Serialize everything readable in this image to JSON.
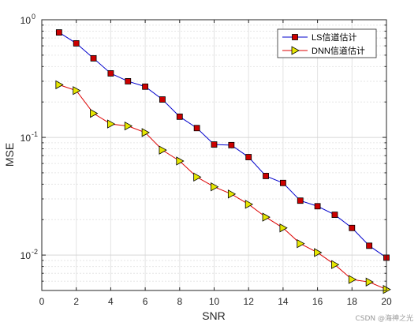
{
  "chart_data": {
    "type": "line",
    "xlabel": "SNR",
    "ylabel": "MSE",
    "xlim": [
      0,
      20
    ],
    "ylim": [
      0.005,
      1
    ],
    "yscale": "log",
    "grid": true,
    "legend_position": "top-right",
    "xticks": [
      "0",
      "2",
      "4",
      "6",
      "8",
      "10",
      "12",
      "14",
      "16",
      "18",
      "20"
    ],
    "yticks": [
      {
        "value": 1,
        "mantissa": "10",
        "exp": "0"
      },
      {
        "value": 0.1,
        "mantissa": "10",
        "exp": "-1"
      },
      {
        "value": 0.01,
        "mantissa": "10",
        "exp": "-2"
      }
    ],
    "x": [
      1,
      2,
      3,
      4,
      5,
      6,
      7,
      8,
      9,
      10,
      11,
      12,
      13,
      14,
      15,
      16,
      17,
      18,
      19,
      20
    ],
    "series": [
      {
        "name": "LS信道估计",
        "line_color": "#0000cc",
        "marker": "square",
        "marker_color": "#cc0000",
        "values": [
          0.78,
          0.63,
          0.47,
          0.35,
          0.3,
          0.27,
          0.21,
          0.15,
          0.12,
          0.087,
          0.086,
          0.068,
          0.047,
          0.041,
          0.029,
          0.026,
          0.022,
          0.017,
          0.012,
          0.0095
        ]
      },
      {
        "name": "DNN信道估计",
        "line_color": "#dd0000",
        "marker": "triangle-right",
        "marker_color": "#e6e600",
        "values": [
          0.28,
          0.25,
          0.16,
          0.13,
          0.125,
          0.11,
          0.078,
          0.063,
          0.046,
          0.038,
          0.033,
          0.027,
          0.021,
          0.017,
          0.0125,
          0.0105,
          0.0083,
          0.0062,
          0.0059,
          0.0051
        ]
      }
    ]
  },
  "watermark": "CSDN @海神之光"
}
